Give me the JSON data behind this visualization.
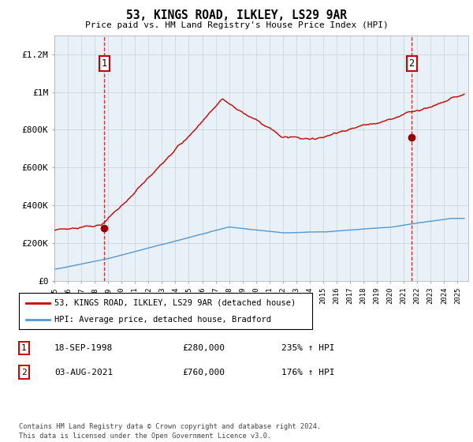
{
  "title": "53, KINGS ROAD, ILKLEY, LS29 9AR",
  "subtitle": "Price paid vs. HM Land Registry's House Price Index (HPI)",
  "property_label": "53, KINGS ROAD, ILKLEY, LS29 9AR (detached house)",
  "hpi_label": "HPI: Average price, detached house, Bradford",
  "transaction1_date": "18-SEP-1998",
  "transaction1_price": "£280,000",
  "transaction1_hpi": "235% ↑ HPI",
  "transaction2_date": "03-AUG-2021",
  "transaction2_price": "£760,000",
  "transaction2_hpi": "176% ↑ HPI",
  "footer": "Contains HM Land Registry data © Crown copyright and database right 2024.\nThis data is licensed under the Open Government Licence v3.0.",
  "property_color": "#cc0000",
  "hpi_color": "#5599cc",
  "marker_color": "#990000",
  "plot_bg": "#e8f0f8",
  "ylim": [
    0,
    1300000
  ],
  "yticks": [
    0,
    200000,
    400000,
    600000,
    800000,
    1000000,
    1200000
  ],
  "ytick_labels": [
    "£0",
    "£200K",
    "£400K",
    "£600K",
    "£800K",
    "£1M",
    "£1.2M"
  ],
  "background_color": "#ffffff",
  "grid_color": "#c8d0d8"
}
